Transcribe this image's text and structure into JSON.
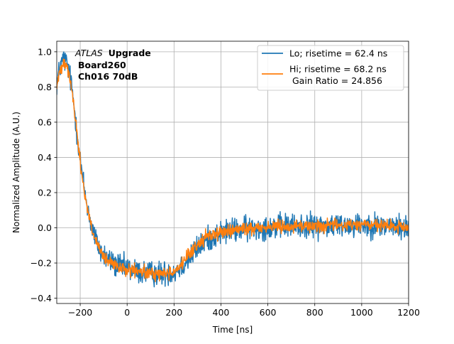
{
  "chart_data": {
    "type": "line",
    "title": "",
    "xlabel": "Time [ns]",
    "ylabel": "Normalized Amplitude (A.U.)",
    "xlim": [
      -300,
      1200
    ],
    "ylim": [
      -0.43,
      1.06
    ],
    "xticks": [
      -200,
      0,
      200,
      400,
      600,
      800,
      1000,
      1200
    ],
    "xtick_labels": [
      "−200",
      "0",
      "200",
      "400",
      "600",
      "800",
      "1000",
      "1200"
    ],
    "yticks": [
      -0.4,
      -0.2,
      0.0,
      0.2,
      0.4,
      0.6,
      0.8,
      1.0
    ],
    "ytick_labels": [
      "−0.4",
      "−0.2",
      "0.0",
      "0.2",
      "0.4",
      "0.6",
      "0.8",
      "1.0"
    ],
    "grid": true,
    "legend_position": "top-right",
    "annotation": {
      "atlas": "ATLAS",
      "upgrade": "Upgrade",
      "board": "Board260",
      "channel": "Ch016 70dB"
    },
    "series": [
      {
        "name": "Lo; risetime = 62.4 ns",
        "legend_label": "Lo; risetime = 62.4 ns",
        "color": "#1f77b4",
        "noise": 0.035,
        "x": [
          -300,
          -285,
          -270,
          -255,
          -240,
          -225,
          -210,
          -195,
          -180,
          -165,
          -150,
          -130,
          -110,
          -90,
          -70,
          -50,
          -25,
          0,
          50,
          100,
          150,
          200,
          230,
          260,
          290,
          320,
          350,
          380,
          420,
          480,
          550,
          650,
          800,
          1000,
          1200
        ],
        "y": [
          0.82,
          0.92,
          0.96,
          0.93,
          0.83,
          0.68,
          0.5,
          0.33,
          0.2,
          0.09,
          0.0,
          -0.08,
          -0.14,
          -0.17,
          -0.19,
          -0.21,
          -0.22,
          -0.23,
          -0.25,
          -0.26,
          -0.26,
          -0.25,
          -0.22,
          -0.18,
          -0.13,
          -0.09,
          -0.06,
          -0.04,
          -0.02,
          -0.01,
          0.0,
          0.01,
          0.01,
          0.02,
          0.0
        ]
      },
      {
        "name": "Hi; risetime = 68.2 ns",
        "legend_label": "Hi; risetime = 68.2 ns",
        "legend_label_2": "Gain Ratio = 24.856",
        "color": "#ff7f0e",
        "noise": 0.018,
        "x": [
          -300,
          -285,
          -270,
          -255,
          -240,
          -225,
          -210,
          -195,
          -180,
          -165,
          -150,
          -130,
          -110,
          -90,
          -70,
          -50,
          -25,
          0,
          50,
          100,
          150,
          200,
          230,
          260,
          290,
          320,
          350,
          380,
          420,
          480,
          550,
          650,
          800,
          1000,
          1200
        ],
        "y": [
          0.8,
          0.9,
          0.95,
          0.92,
          0.82,
          0.67,
          0.49,
          0.32,
          0.19,
          0.08,
          -0.01,
          -0.09,
          -0.15,
          -0.18,
          -0.2,
          -0.22,
          -0.23,
          -0.24,
          -0.25,
          -0.26,
          -0.26,
          -0.25,
          -0.21,
          -0.16,
          -0.11,
          -0.07,
          -0.04,
          -0.03,
          -0.02,
          -0.01,
          0.0,
          0.01,
          0.01,
          0.02,
          0.0
        ]
      }
    ]
  }
}
